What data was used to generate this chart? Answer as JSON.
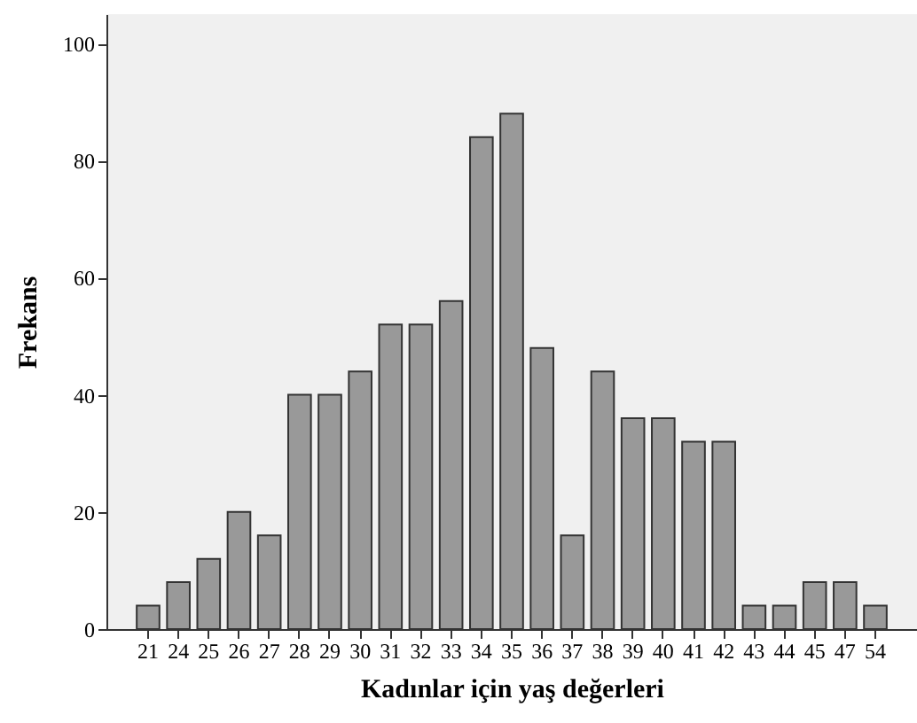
{
  "chart_data": {
    "type": "bar",
    "xlabel": "Kadınlar için yaş değerleri",
    "ylabel": "Frekans",
    "categories": [
      "21",
      "24",
      "25",
      "26",
      "27",
      "28",
      "29",
      "30",
      "31",
      "32",
      "33",
      "34",
      "35",
      "36",
      "37",
      "38",
      "39",
      "40",
      "41",
      "42",
      "43",
      "44",
      "45",
      "47",
      "54"
    ],
    "values": [
      4,
      8,
      12,
      20,
      16,
      40,
      40,
      44,
      52,
      52,
      56,
      84,
      88,
      48,
      16,
      44,
      36,
      36,
      32,
      32,
      4,
      4,
      8,
      8,
      4
    ],
    "color": "#999999",
    "ylim": [
      0,
      105
    ],
    "yticks": [
      0,
      20,
      40,
      60,
      80,
      100
    ],
    "grid": false
  }
}
